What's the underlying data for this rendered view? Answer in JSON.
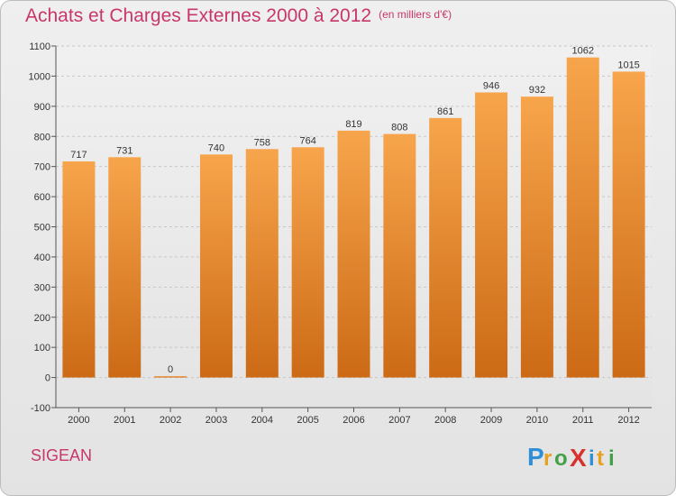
{
  "header": {
    "title": "Achats et Charges Externes 2000 à 2012",
    "subtitle": "(en milliers d'€)"
  },
  "footer": {
    "city": "SIGEAN",
    "logo_text": "Proxiti"
  },
  "colors": {
    "accent": "#c8366a",
    "bar_top": "#f7a54c",
    "bar_bottom": "#cc6a16"
  },
  "chart_data": {
    "type": "bar",
    "title": "Achats et Charges Externes 2000 à 2012",
    "subtitle": "(en milliers d'€)",
    "categories": [
      "2000",
      "2001",
      "2002",
      "2003",
      "2004",
      "2005",
      "2006",
      "2007",
      "2008",
      "2009",
      "2010",
      "2011",
      "2012"
    ],
    "values": [
      717,
      731,
      0,
      740,
      758,
      764,
      819,
      808,
      861,
      946,
      932,
      1062,
      1015
    ],
    "data_labels": [
      "717",
      "731",
      "0",
      "740",
      "758",
      "764",
      "819",
      "808",
      "861",
      "946",
      "932",
      "1062",
      "1015"
    ],
    "yticks": [
      -100,
      0,
      100,
      200,
      300,
      400,
      500,
      600,
      700,
      800,
      900,
      1000,
      1100
    ],
    "ylim": [
      -100,
      1100
    ],
    "xlabel": "",
    "ylabel": "",
    "grid": true
  }
}
